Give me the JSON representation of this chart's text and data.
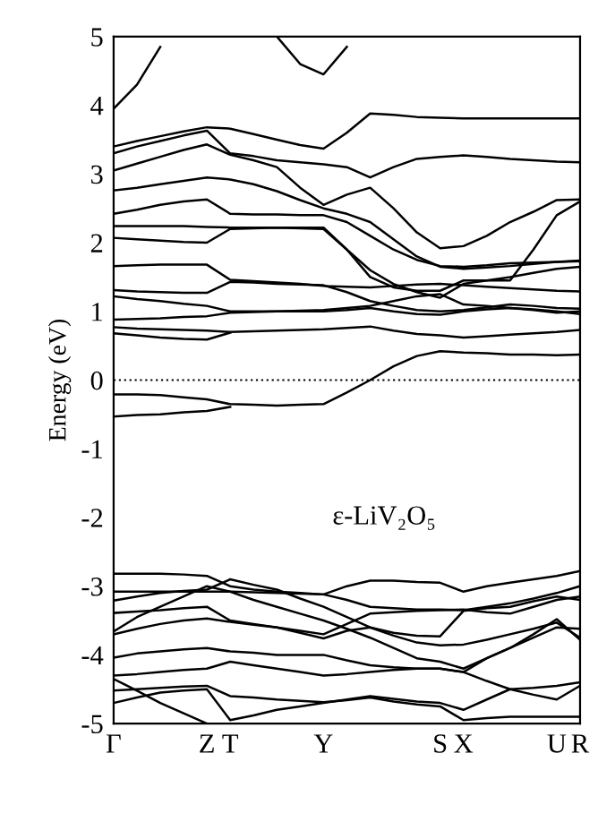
{
  "chart_data": {
    "type": "line",
    "ylabel": "Energy (eV)",
    "annotations": [
      "ε-LiV₂O₅"
    ],
    "categories": [
      "Γ",
      null,
      null,
      null,
      "Z",
      "T",
      null,
      null,
      null,
      "Y",
      null,
      null,
      null,
      null,
      "S",
      "X",
      null,
      null,
      null,
      "U",
      "R"
    ],
    "ylim": [
      -5,
      5
    ],
    "yticks": [
      -5,
      -4,
      -3,
      -2,
      -1,
      0,
      1,
      2,
      3,
      4,
      5
    ],
    "grid": false,
    "legend": false,
    "marker": "none",
    "line_style": "solid",
    "ref_lines": [
      {
        "axis": "y",
        "value": 0,
        "label": null,
        "color": "#000000",
        "line_style": "dotted"
      }
    ],
    "series": [
      {
        "color": "#000000",
        "values": [
          3.95,
          4.3,
          4.85,
          null,
          null,
          null,
          null,
          null,
          null,
          null,
          null,
          null,
          null,
          null,
          null,
          null,
          null,
          null,
          null,
          null,
          null
        ]
      },
      {
        "color": "#000000",
        "values": [
          null,
          null,
          null,
          null,
          null,
          null,
          null,
          5.0,
          4.6,
          4.45,
          4.85,
          null,
          null,
          null,
          null,
          null,
          null,
          null,
          null,
          null,
          null
        ]
      },
      {
        "color": "#000000",
        "values": [
          3.4,
          3.48,
          3.55,
          3.62,
          3.68,
          3.66,
          3.58,
          3.5,
          3.42,
          3.37,
          3.6,
          3.88,
          3.86,
          3.83,
          3.82,
          3.81,
          3.81,
          3.81,
          3.81,
          3.81,
          3.81
        ]
      },
      {
        "color": "#000000",
        "values": [
          3.3,
          3.4,
          3.48,
          3.56,
          3.63,
          3.3,
          3.26,
          3.2,
          3.17,
          3.14,
          3.1,
          2.95,
          3.1,
          3.22,
          3.25,
          3.27,
          3.25,
          3.22,
          3.2,
          3.18,
          3.17
        ]
      },
      {
        "color": "#000000",
        "values": [
          3.05,
          3.15,
          3.25,
          3.35,
          3.43,
          3.28,
          3.2,
          3.1,
          2.8,
          2.55,
          2.7,
          2.8,
          2.5,
          2.15,
          1.92,
          1.95,
          2.1,
          2.3,
          2.45,
          2.62,
          2.63
        ]
      },
      {
        "color": "#000000",
        "values": [
          2.76,
          2.8,
          2.85,
          2.9,
          2.95,
          2.92,
          2.85,
          2.75,
          2.62,
          2.5,
          2.42,
          2.3,
          2.05,
          1.8,
          1.65,
          1.62,
          1.64,
          1.66,
          1.69,
          1.72,
          1.74
        ]
      },
      {
        "color": "#000000",
        "values": [
          2.42,
          2.48,
          2.55,
          2.6,
          2.63,
          2.42,
          2.41,
          2.41,
          2.4,
          2.4,
          2.3,
          2.1,
          1.9,
          1.75,
          1.66,
          1.65,
          1.67,
          1.7,
          1.71,
          1.72,
          1.73
        ]
      },
      {
        "color": "#000000",
        "values": [
          2.24,
          2.24,
          2.24,
          2.24,
          2.23,
          2.22,
          2.22,
          2.22,
          2.22,
          2.22,
          1.9,
          1.5,
          1.35,
          1.3,
          1.3,
          1.45,
          1.45,
          1.45,
          1.9,
          2.4,
          2.6
        ]
      },
      {
        "color": "#000000",
        "values": [
          2.07,
          2.05,
          2.03,
          2.01,
          2.0,
          2.2,
          2.21,
          2.22,
          2.21,
          2.2,
          1.9,
          1.6,
          1.4,
          1.28,
          1.2,
          1.4,
          1.45,
          1.5,
          1.56,
          1.62,
          1.65
        ]
      },
      {
        "color": "#000000",
        "values": [
          1.66,
          1.67,
          1.68,
          1.68,
          1.68,
          1.46,
          1.44,
          1.42,
          1.4,
          1.37,
          1.36,
          1.35,
          1.37,
          1.39,
          1.4,
          1.38,
          1.36,
          1.34,
          1.32,
          1.3,
          1.29
        ]
      },
      {
        "color": "#000000",
        "values": [
          1.31,
          1.29,
          1.28,
          1.27,
          1.27,
          1.43,
          1.42,
          1.4,
          1.39,
          1.38,
          1.28,
          1.15,
          1.08,
          1.02,
          1.0,
          1.02,
          1.06,
          1.1,
          1.08,
          1.05,
          1.04
        ]
      },
      {
        "color": "#000000",
        "values": [
          1.22,
          1.18,
          1.15,
          1.11,
          1.08,
          1.0,
          1.0,
          1.0,
          1.01,
          1.02,
          1.05,
          1.08,
          1.15,
          1.22,
          1.25,
          1.1,
          1.08,
          1.05,
          1.02,
          0.98,
          1.0
        ]
      },
      {
        "color": "#000000",
        "values": [
          0.88,
          0.89,
          0.9,
          0.92,
          0.93,
          0.98,
          0.99,
          1.0,
          1.0,
          1.0,
          1.02,
          1.05,
          1.0,
          0.96,
          0.95,
          1.0,
          1.03,
          1.05,
          1.03,
          1.0,
          0.96
        ]
      },
      {
        "color": "#000000",
        "values": [
          0.77,
          0.75,
          0.74,
          0.73,
          0.72,
          0.7,
          0.71,
          0.72,
          0.73,
          0.74,
          0.76,
          0.78,
          0.72,
          0.67,
          0.65,
          0.62,
          0.64,
          0.66,
          0.68,
          0.7,
          0.73
        ]
      },
      {
        "color": "#000000",
        "values": [
          0.68,
          0.65,
          0.62,
          0.6,
          0.59,
          0.69,
          null,
          null,
          null,
          null,
          null,
          null,
          null,
          null,
          null,
          null,
          null,
          null,
          null,
          null,
          null
        ]
      },
      {
        "color": "#000000",
        "values": [
          -0.21,
          -0.21,
          -0.22,
          -0.25,
          -0.28,
          -0.35,
          -0.36,
          -0.37,
          -0.36,
          -0.35,
          -0.18,
          0.0,
          0.2,
          0.35,
          0.42,
          0.4,
          0.39,
          0.37,
          0.37,
          0.36,
          0.37
        ]
      },
      {
        "color": "#000000",
        "values": [
          -0.53,
          -0.51,
          -0.5,
          -0.47,
          -0.45,
          -0.39,
          null,
          null,
          null,
          null,
          null,
          null,
          null,
          null,
          null,
          null,
          null,
          null,
          null,
          null,
          null
        ]
      },
      {
        "color": "#000000",
        "values": [
          -2.82,
          -2.82,
          -2.82,
          -2.83,
          -2.85,
          -3.0,
          -3.05,
          -3.08,
          -3.1,
          -3.12,
          -3.0,
          -2.92,
          -2.92,
          -2.94,
          -2.95,
          -3.08,
          -3.0,
          -2.95,
          -2.9,
          -2.85,
          -2.78
        ]
      },
      {
        "color": "#000000",
        "values": [
          -3.08,
          -3.08,
          -3.08,
          -3.08,
          -3.08,
          -3.08,
          -3.09,
          -3.1,
          -3.11,
          -3.12,
          -3.2,
          -3.3,
          -3.32,
          -3.34,
          -3.34,
          -3.35,
          -3.3,
          -3.25,
          -3.18,
          -3.1,
          -3.0
        ]
      },
      {
        "color": "#000000",
        "values": [
          -3.21,
          -3.15,
          -3.1,
          -3.07,
          -3.05,
          -2.9,
          -2.98,
          -3.05,
          -3.18,
          -3.3,
          -3.45,
          -3.6,
          -3.68,
          -3.72,
          -3.73,
          -3.36,
          -3.32,
          -3.3,
          -3.22,
          -3.15,
          -3.2
        ]
      },
      {
        "color": "#000000",
        "values": [
          -3.39,
          -3.37,
          -3.35,
          -3.32,
          -3.3,
          -3.5,
          -3.55,
          -3.6,
          -3.65,
          -3.7,
          -3.55,
          -3.4,
          -3.38,
          -3.36,
          -3.35,
          -3.34,
          -3.38,
          -3.4,
          -3.3,
          -3.2,
          -3.15
        ]
      },
      {
        "color": "#000000",
        "values": [
          -3.66,
          -3.45,
          -3.3,
          -3.15,
          -3.0,
          -3.08,
          -3.2,
          -3.3,
          -3.4,
          -3.5,
          -3.62,
          -3.75,
          -3.9,
          -4.05,
          -4.1,
          -4.2,
          -4.05,
          -3.9,
          -3.75,
          -3.6,
          -3.62
        ]
      },
      {
        "color": "#000000",
        "values": [
          -3.7,
          -3.62,
          -3.55,
          -3.5,
          -3.47,
          -3.52,
          -3.56,
          -3.6,
          -3.68,
          -3.76,
          -3.65,
          -3.6,
          -3.72,
          -3.82,
          -3.86,
          -3.85,
          -3.78,
          -3.7,
          -3.62,
          -3.53,
          -3.75
        ]
      },
      {
        "color": "#000000",
        "values": [
          -4.04,
          -3.98,
          -3.95,
          -3.92,
          -3.9,
          -3.95,
          -3.97,
          -4.0,
          -4.0,
          -4.0,
          -4.08,
          -4.15,
          -4.18,
          -4.2,
          -4.2,
          -4.25,
          -4.05,
          -3.9,
          -3.7,
          -3.48,
          -3.78
        ]
      },
      {
        "color": "#000000",
        "values": [
          -4.3,
          -4.28,
          -4.25,
          -4.22,
          -4.2,
          -4.1,
          -4.15,
          -4.2,
          -4.25,
          -4.3,
          -4.28,
          -4.25,
          -4.22,
          -4.2,
          -4.2,
          -4.25,
          -4.38,
          -4.5,
          -4.58,
          -4.65,
          -4.45
        ]
      },
      {
        "color": "#000000",
        "values": [
          -4.52,
          -4.5,
          -4.48,
          -4.46,
          -4.45,
          -4.6,
          -4.62,
          -4.65,
          -4.67,
          -4.69,
          -4.66,
          -4.62,
          -4.68,
          -4.72,
          -4.75,
          -4.95,
          -4.92,
          -4.9,
          -4.9,
          -4.9,
          -4.9
        ]
      },
      {
        "color": "#000000",
        "values": [
          -4.7,
          -4.62,
          -4.55,
          -4.52,
          -4.5,
          -4.95,
          -4.88,
          -4.8,
          -4.75,
          -4.7,
          -4.65,
          -4.6,
          -4.64,
          -4.68,
          -4.7,
          -4.8,
          -4.65,
          -4.5,
          -4.48,
          -4.45,
          -4.4
        ]
      },
      {
        "color": "#000000",
        "values": [
          -4.35,
          -4.52,
          -4.7,
          -4.85,
          -5.0,
          null,
          null,
          null,
          null,
          null,
          null,
          null,
          null,
          null,
          null,
          null,
          null,
          null,
          null,
          null,
          null
        ]
      }
    ]
  }
}
